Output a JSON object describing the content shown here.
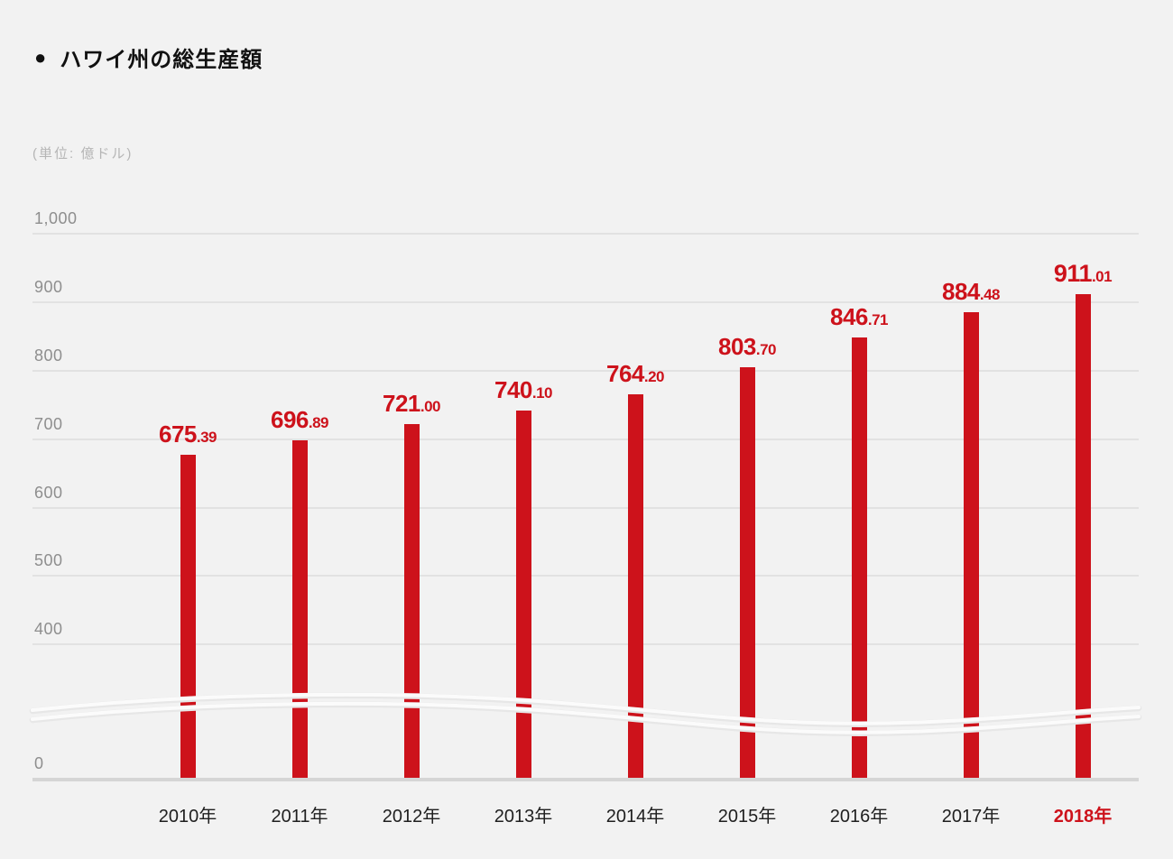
{
  "title": {
    "bullet": "●",
    "text": "ハワイ州の総生産額"
  },
  "unit_label": "(単位: 億ドル)",
  "chart_data": {
    "type": "bar",
    "title": "ハワイ州の総生産額",
    "unit": "億ドル",
    "categories": [
      "2010年",
      "2011年",
      "2012年",
      "2013年",
      "2014年",
      "2015年",
      "2016年",
      "2017年",
      "2018年"
    ],
    "values": [
      675.39,
      696.89,
      721.0,
      740.1,
      764.2,
      803.7,
      846.71,
      884.48,
      911.01
    ],
    "highlight_index": 8,
    "y_ticks": [
      {
        "label": "1,000",
        "value": 1000
      },
      {
        "label": "900",
        "value": 900
      },
      {
        "label": "800",
        "value": 800
      },
      {
        "label": "700",
        "value": 700
      },
      {
        "label": "600",
        "value": 600
      },
      {
        "label": "500",
        "value": 500
      },
      {
        "label": "400",
        "value": 400
      },
      {
        "label": "0",
        "value": 0
      }
    ],
    "axis_break": true,
    "ylim_visible": [
      400,
      1000
    ],
    "grid": true,
    "legend": "none",
    "colors": {
      "bar": "#cd121b",
      "highlight_text": "#cd121b",
      "background": "#f2f2f2",
      "gridline": "#e2e2e2",
      "zero_line": "#d5d5d5",
      "tick_text": "#8e8e8e",
      "category_text": "#1f1f1f"
    }
  }
}
